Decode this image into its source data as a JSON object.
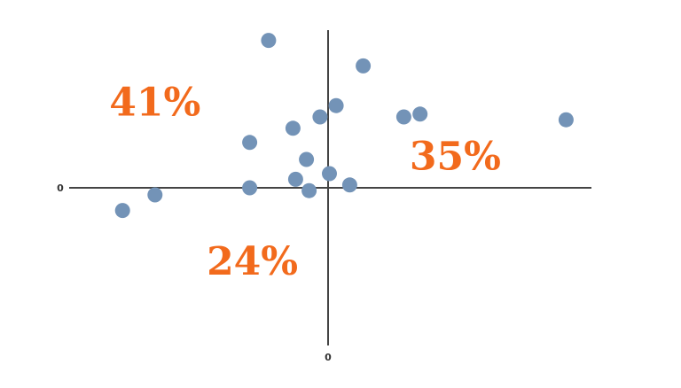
{
  "chart_data": {
    "type": "scatter",
    "title": "",
    "xlabel": "",
    "ylabel": "",
    "xlim": [
      -9.6,
      9.6
    ],
    "ylim": [
      -5.6,
      5.6
    ],
    "x_tick_label": "0",
    "y_tick_label": "0",
    "grid": false,
    "marker_color": "#7393b7",
    "label_color": "#f26a1c",
    "points": [
      {
        "x": -2.2,
        "y": 5.2
      },
      {
        "x": 1.3,
        "y": 4.3
      },
      {
        "x": 0.3,
        "y": 2.9
      },
      {
        "x": -0.3,
        "y": 2.5
      },
      {
        "x": -1.3,
        "y": 2.1
      },
      {
        "x": 2.8,
        "y": 2.5
      },
      {
        "x": 3.4,
        "y": 2.6
      },
      {
        "x": 8.8,
        "y": 2.4
      },
      {
        "x": -2.9,
        "y": 1.6
      },
      {
        "x": -0.8,
        "y": 1.0
      },
      {
        "x": 0.05,
        "y": 0.5
      },
      {
        "x": -1.2,
        "y": 0.3
      },
      {
        "x": 0.8,
        "y": 0.1
      },
      {
        "x": -0.7,
        "y": -0.1
      },
      {
        "x": -2.9,
        "y": 0.0
      },
      {
        "x": -6.4,
        "y": -0.25
      },
      {
        "x": -7.6,
        "y": -0.8
      }
    ],
    "annotations": [
      {
        "text": "41%",
        "x": -6.4,
        "y": 2.9
      },
      {
        "text": "35%",
        "x": 4.7,
        "y": 1.0
      },
      {
        "text": "24%",
        "x": -2.8,
        "y": -2.7
      }
    ]
  }
}
